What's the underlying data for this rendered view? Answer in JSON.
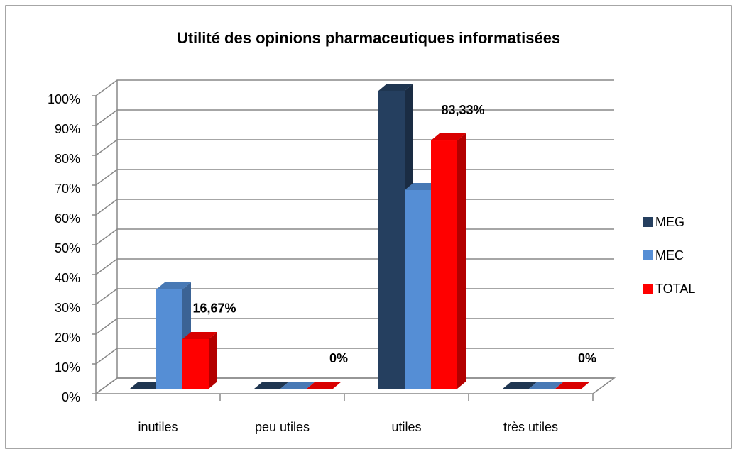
{
  "chart_data": {
    "type": "bar3d",
    "title": "Utilité des opinions pharmaceutiques informatisées",
    "categories": [
      "inutiles",
      "peu utiles",
      "utiles",
      "très utiles"
    ],
    "series": [
      {
        "name": "MEG",
        "color": "#253f5f",
        "values": [
          0,
          0,
          100,
          0
        ]
      },
      {
        "name": "MEC",
        "color": "#558ed5",
        "values": [
          33.33,
          0,
          66.67,
          0
        ]
      },
      {
        "name": "TOTAL",
        "color": "#ff0000",
        "values": [
          16.67,
          0,
          83.33,
          0
        ],
        "value_labels": [
          "16,67%",
          "0%",
          "83,33%",
          "0%"
        ]
      }
    ],
    "ylim": [
      0,
      100
    ],
    "yticks": [
      {
        "value": 0,
        "label": "0%"
      },
      {
        "value": 10,
        "label": "10%"
      },
      {
        "value": 20,
        "label": "20%"
      },
      {
        "value": 30,
        "label": "30%"
      },
      {
        "value": 40,
        "label": "40%"
      },
      {
        "value": 50,
        "label": "50%"
      },
      {
        "value": 60,
        "label": "60%"
      },
      {
        "value": 70,
        "label": "70%"
      },
      {
        "value": 80,
        "label": "80%"
      },
      {
        "value": 90,
        "label": "90%"
      },
      {
        "value": 100,
        "label": "100%"
      }
    ],
    "grid": true,
    "legend": "right"
  }
}
